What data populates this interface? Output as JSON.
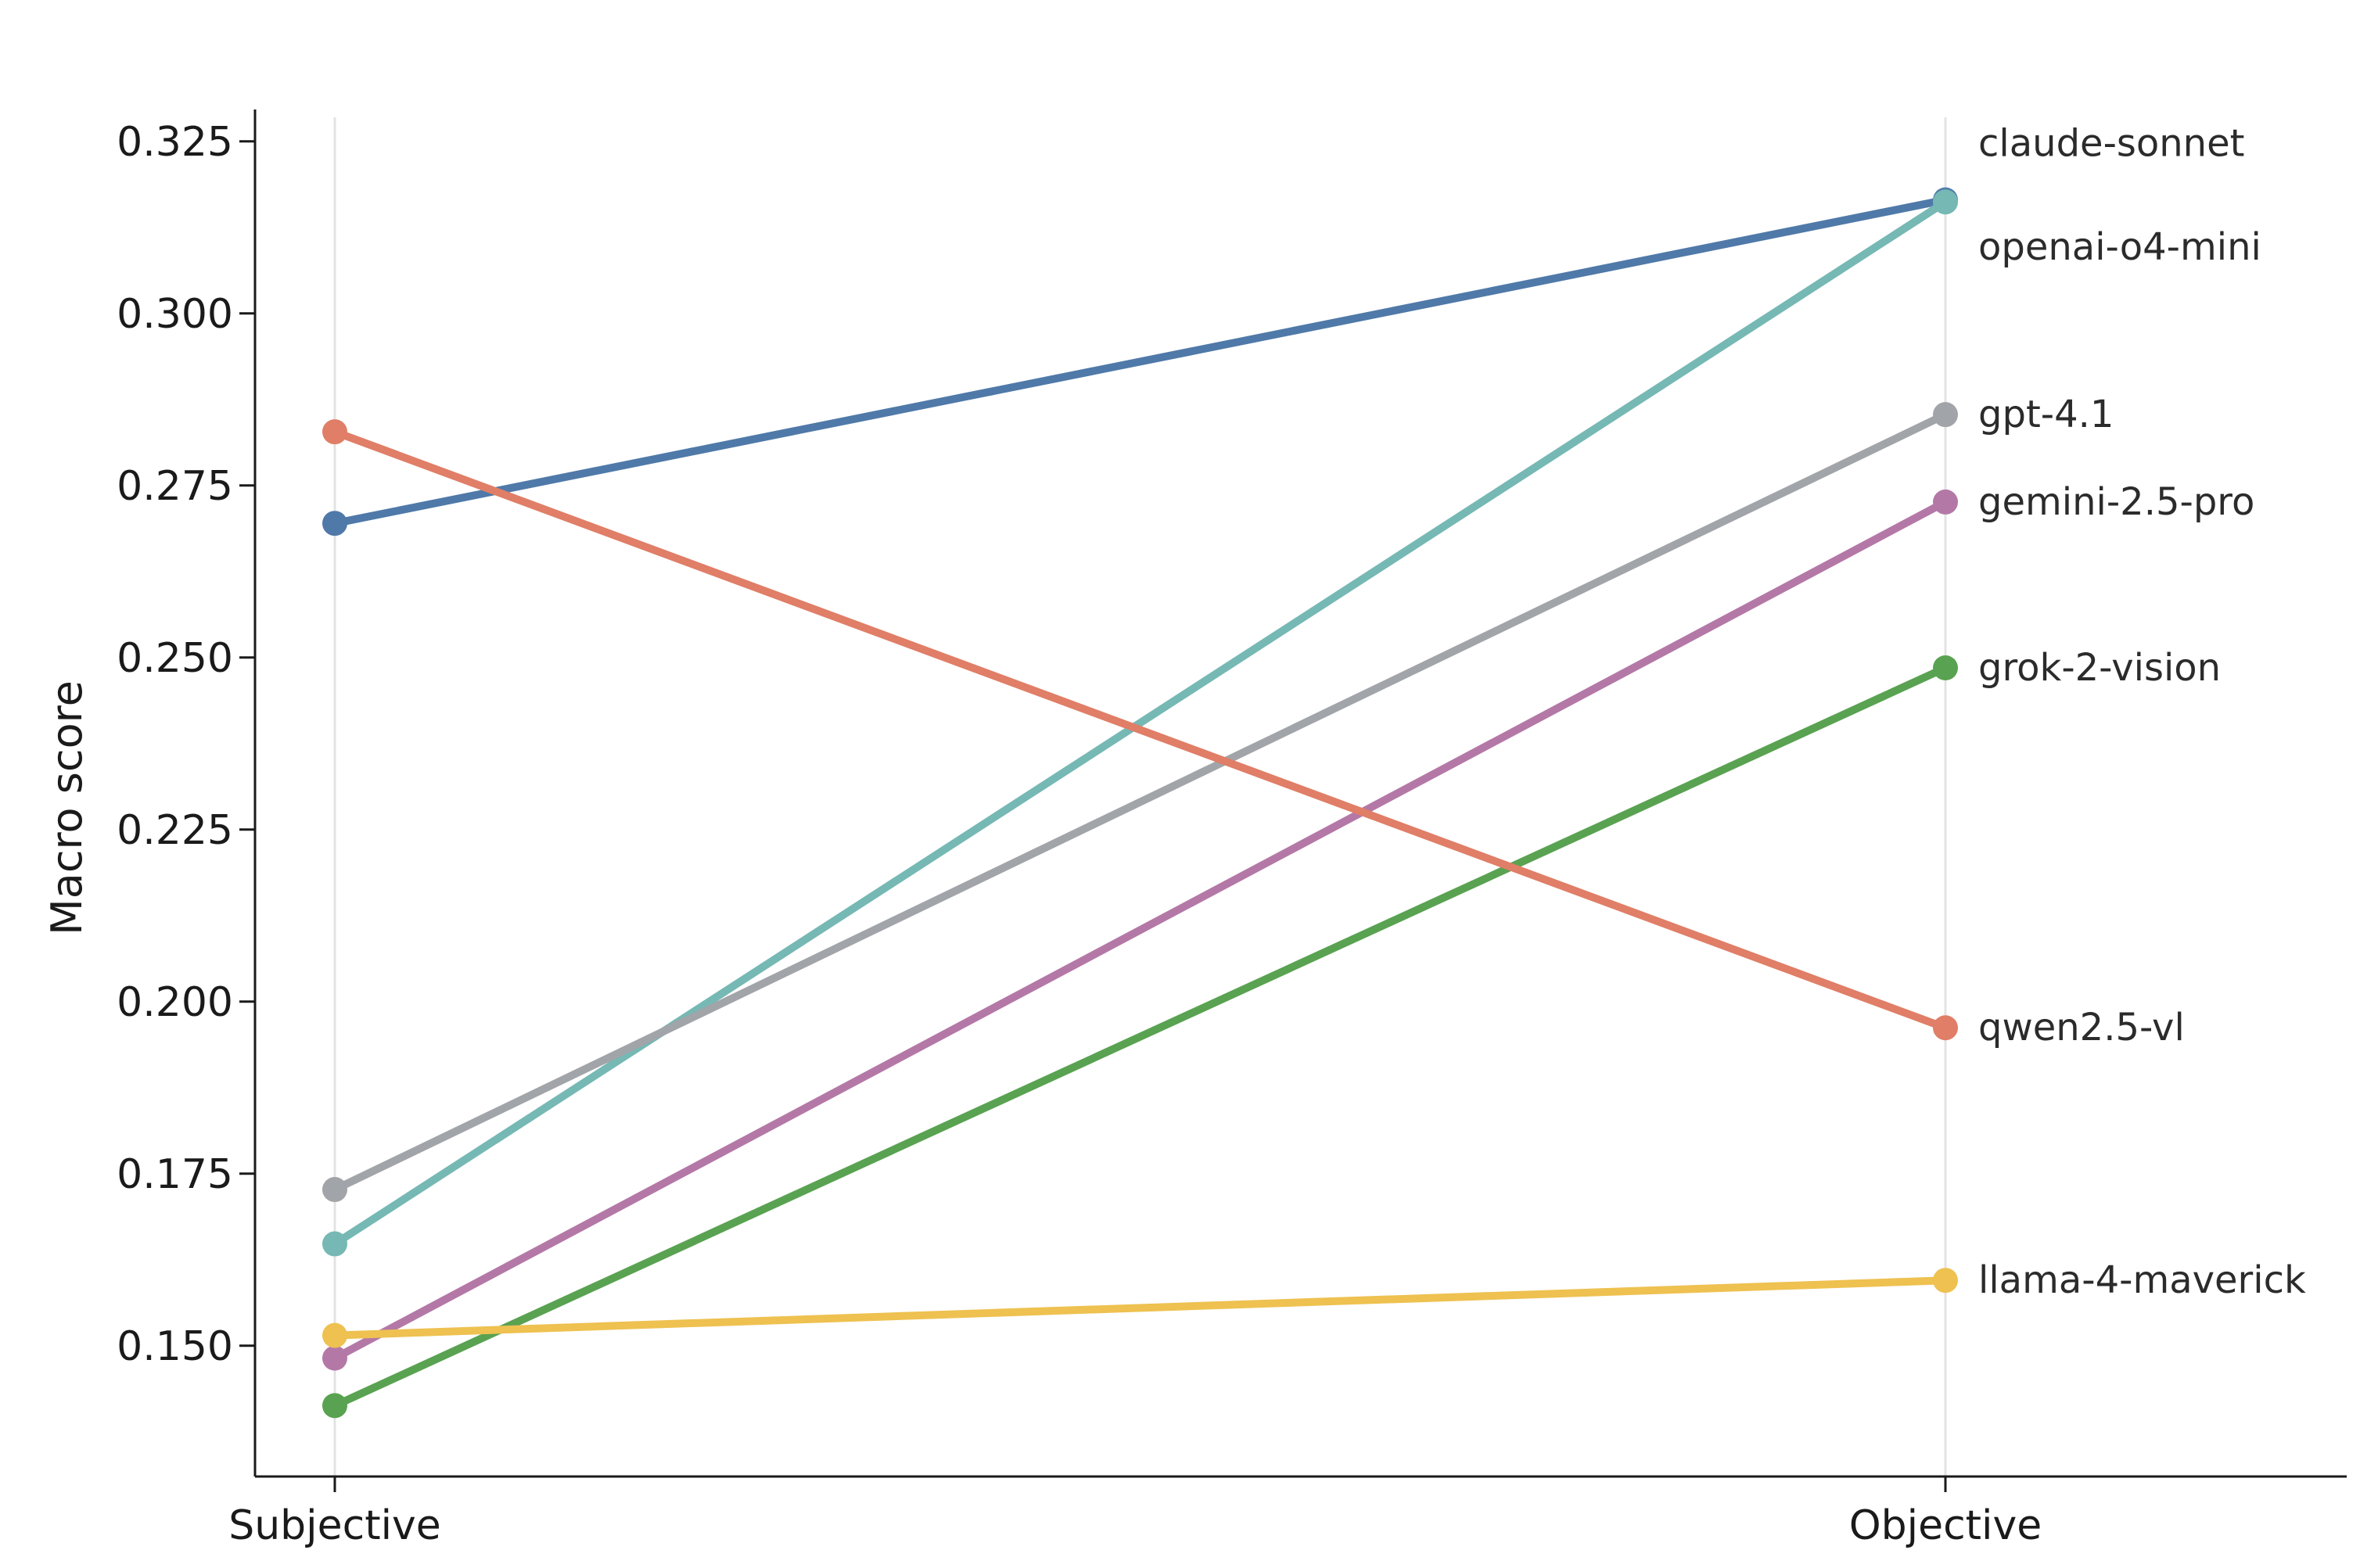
{
  "chart_data": {
    "type": "line",
    "categories": [
      "Subjective",
      "Objective"
    ],
    "ylabel": "Macro score",
    "xlabel": "",
    "ylim": [
      0.131,
      0.3285
    ],
    "yticks": [
      "0.150",
      "0.175",
      "0.200",
      "0.225",
      "0.250",
      "0.275",
      "0.300",
      "0.325"
    ],
    "grid": "vertical lines at categories",
    "legend": "labels at right end of each series",
    "series": [
      {
        "name": "claude-sonnet",
        "values": [
          0.2695,
          0.3165
        ],
        "color": "#4f79a8"
      },
      {
        "name": "openai-o4-mini",
        "values": [
          0.1648,
          0.3162
        ],
        "color": "#76b8b4"
      },
      {
        "name": "gpt-4.1",
        "values": [
          0.1727,
          0.2853
        ],
        "color": "#a1a4a8"
      },
      {
        "name": "gemini-2.5-pro",
        "values": [
          0.1482,
          0.2726
        ],
        "color": "#b478a7"
      },
      {
        "name": "grok-2-vision",
        "values": [
          0.1413,
          0.2485
        ],
        "color": "#59a251"
      },
      {
        "name": "qwen2.5-vl",
        "values": [
          0.2828,
          0.1962
        ],
        "color": "#e07e67"
      },
      {
        "name": "llama-4-maverick",
        "values": [
          0.1515,
          0.1595
        ],
        "color": "#eec150"
      }
    ]
  }
}
